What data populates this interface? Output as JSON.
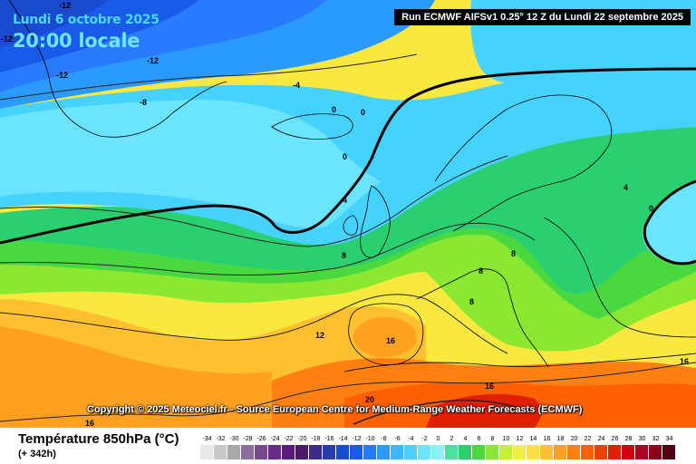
{
  "header": {
    "date": "Lundi 6 octobre 2025",
    "time": "20:00 locale",
    "run": "Run ECMWF AIFSv1 0.25° 12 Z du Lundi 22 septembre 2025"
  },
  "copyright": "Copyright © 2025 Meteociel.fr - Source European Centre for Medium-Range Weather Forecasts (ECMWF)",
  "footer": {
    "field_title": "Température 850hPa (°C)",
    "lead_time": "(+ 342h)"
  },
  "contour_labels": [
    "-12",
    "-12",
    "-12",
    "-12",
    "-8",
    "-4",
    "0",
    "0",
    "0",
    "0",
    "4",
    "4",
    "8",
    "8",
    "8",
    "8",
    "12",
    "16",
    "16",
    "16",
    "16",
    "20"
  ],
  "colorbar": {
    "labels": [
      "-34",
      "-32",
      "-30",
      "-28",
      "-26",
      "-24",
      "-22",
      "-20",
      "-18",
      "-16",
      "-14",
      "-12",
      "-10",
      "-8",
      "-6",
      "-4",
      "-2",
      "0",
      "2",
      "4",
      "6",
      "8",
      "10",
      "12",
      "14",
      "16",
      "18",
      "20",
      "22",
      "24",
      "26",
      "28",
      "30",
      "32",
      "34"
    ],
    "colors": [
      "#e8e8e8",
      "#c8c8c8",
      "#a8a8a8",
      "#8c6e9e",
      "#7a4a8e",
      "#6a2a8a",
      "#5a1a7e",
      "#4a1a6a",
      "#3a2a8a",
      "#2a3ab0",
      "#1a4ad0",
      "#1a5ae8",
      "#2a7aff",
      "#2a9aff",
      "#3ab8ff",
      "#4ad0ff",
      "#6ae4ff",
      "#8af0f0",
      "#4ae0a0",
      "#2ad070",
      "#4ad840",
      "#8ae830",
      "#c8f030",
      "#f0f040",
      "#ffe040",
      "#ffc030",
      "#ffa020",
      "#ff8010",
      "#ff6000",
      "#f04000",
      "#e02000",
      "#d00010",
      "#b00020",
      "#900018",
      "#500010"
    ]
  },
  "map_legend": {
    "isotherm_heavy": "0",
    "palette": {
      "deep_cold": "#1a3ad8",
      "cold": "#2a8aff",
      "cool": "#46d2ff",
      "mild": "#2ad070",
      "warm": "#f0f040",
      "hot": "#ff8010"
    }
  }
}
